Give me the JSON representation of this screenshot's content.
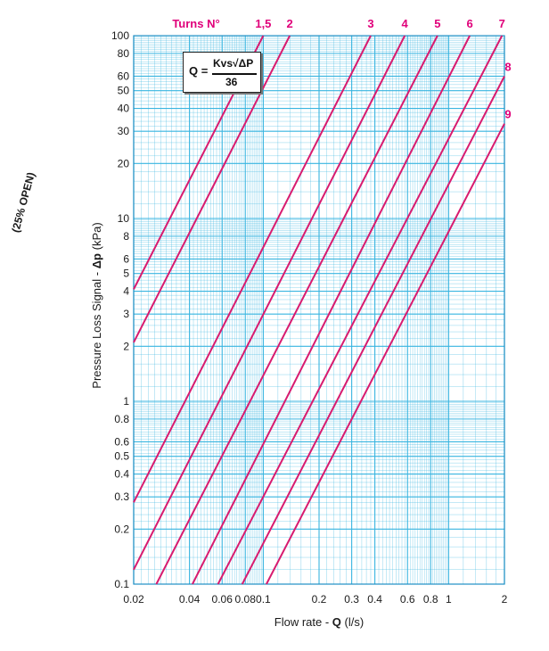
{
  "side_note": "(25% OPEN)",
  "formula": {
    "lhs": "Q =",
    "numerator": "Kvs√ΔP",
    "denominator": "36"
  },
  "colors": {
    "grid": "#39b5e0",
    "curve": "#d81b6f",
    "label": "#e0007a",
    "text": "#1a1a1a"
  },
  "chart_data": {
    "type": "line",
    "xscale": "log",
    "yscale": "log",
    "xlim": [
      0.02,
      2
    ],
    "ylim": [
      0.1,
      100
    ],
    "grid": true,
    "xlabel_text": "Flow rate - ",
    "xlabel_symbol": "Q",
    "xlabel_unit": " (l/s)",
    "ylabel_text": "Pressure Loss Signal  - ",
    "ylabel_symbol": "Δp",
    "ylabel_unit": " (kPa)",
    "series_title": "Turns N°",
    "x_ticks": [
      {
        "v": 0.02,
        "label": "0.02"
      },
      {
        "v": 0.04,
        "label": "0.04"
      },
      {
        "v": 0.06,
        "label": "0.06"
      },
      {
        "v": 0.08,
        "label": "0.08"
      },
      {
        "v": 0.1,
        "label": "0.1"
      },
      {
        "v": 0.2,
        "label": "0.2"
      },
      {
        "v": 0.3,
        "label": "0.3"
      },
      {
        "v": 0.4,
        "label": "0.4"
      },
      {
        "v": 0.6,
        "label": "0.6"
      },
      {
        "v": 0.8,
        "label": "0.8"
      },
      {
        "v": 1,
        "label": "1"
      },
      {
        "v": 2,
        "label": "2"
      }
    ],
    "y_ticks": [
      {
        "v": 0.1,
        "label": "0.1"
      },
      {
        "v": 0.2,
        "label": "0.2"
      },
      {
        "v": 0.3,
        "label": "0.3"
      },
      {
        "v": 0.4,
        "label": "0.4"
      },
      {
        "v": 0.5,
        "label": "0.5"
      },
      {
        "v": 0.6,
        "label": "0.6"
      },
      {
        "v": 0.8,
        "label": "0.8"
      },
      {
        "v": 1,
        "label": "1"
      },
      {
        "v": 2,
        "label": "2"
      },
      {
        "v": 3,
        "label": "3"
      },
      {
        "v": 4,
        "label": "4"
      },
      {
        "v": 5,
        "label": "5"
      },
      {
        "v": 6,
        "label": "6"
      },
      {
        "v": 8,
        "label": "8"
      },
      {
        "v": 10,
        "label": "10"
      },
      {
        "v": 20,
        "label": "20"
      },
      {
        "v": 30,
        "label": "30"
      },
      {
        "v": 40,
        "label": "40"
      },
      {
        "v": 50,
        "label": "50"
      },
      {
        "v": 60,
        "label": "60"
      },
      {
        "v": 80,
        "label": "80"
      },
      {
        "v": 100,
        "label": "100"
      }
    ],
    "series": [
      {
        "name": "1,5",
        "points": [
          [
            0.02,
            4.1
          ],
          [
            0.1,
            100
          ]
        ]
      },
      {
        "name": "2",
        "points": [
          [
            0.02,
            2.1
          ],
          [
            0.139,
            100
          ]
        ]
      },
      {
        "name": "3",
        "points": [
          [
            0.02,
            0.28
          ],
          [
            0.38,
            100
          ]
        ]
      },
      {
        "name": "4",
        "points": [
          [
            0.02,
            0.12
          ],
          [
            0.58,
            100
          ]
        ]
      },
      {
        "name": "5",
        "points": [
          [
            0.0265,
            0.1
          ],
          [
            0.87,
            100
          ]
        ]
      },
      {
        "name": "6",
        "points": [
          [
            0.0415,
            0.1
          ],
          [
            1.3,
            100
          ]
        ]
      },
      {
        "name": "7",
        "points": [
          [
            0.057,
            0.1
          ],
          [
            1.94,
            100
          ]
        ]
      },
      {
        "name": "8",
        "points": [
          [
            0.077,
            0.1
          ],
          [
            2,
            60
          ]
        ]
      },
      {
        "name": "9",
        "points": [
          [
            0.104,
            0.1
          ],
          [
            2,
            33
          ]
        ]
      }
    ]
  }
}
